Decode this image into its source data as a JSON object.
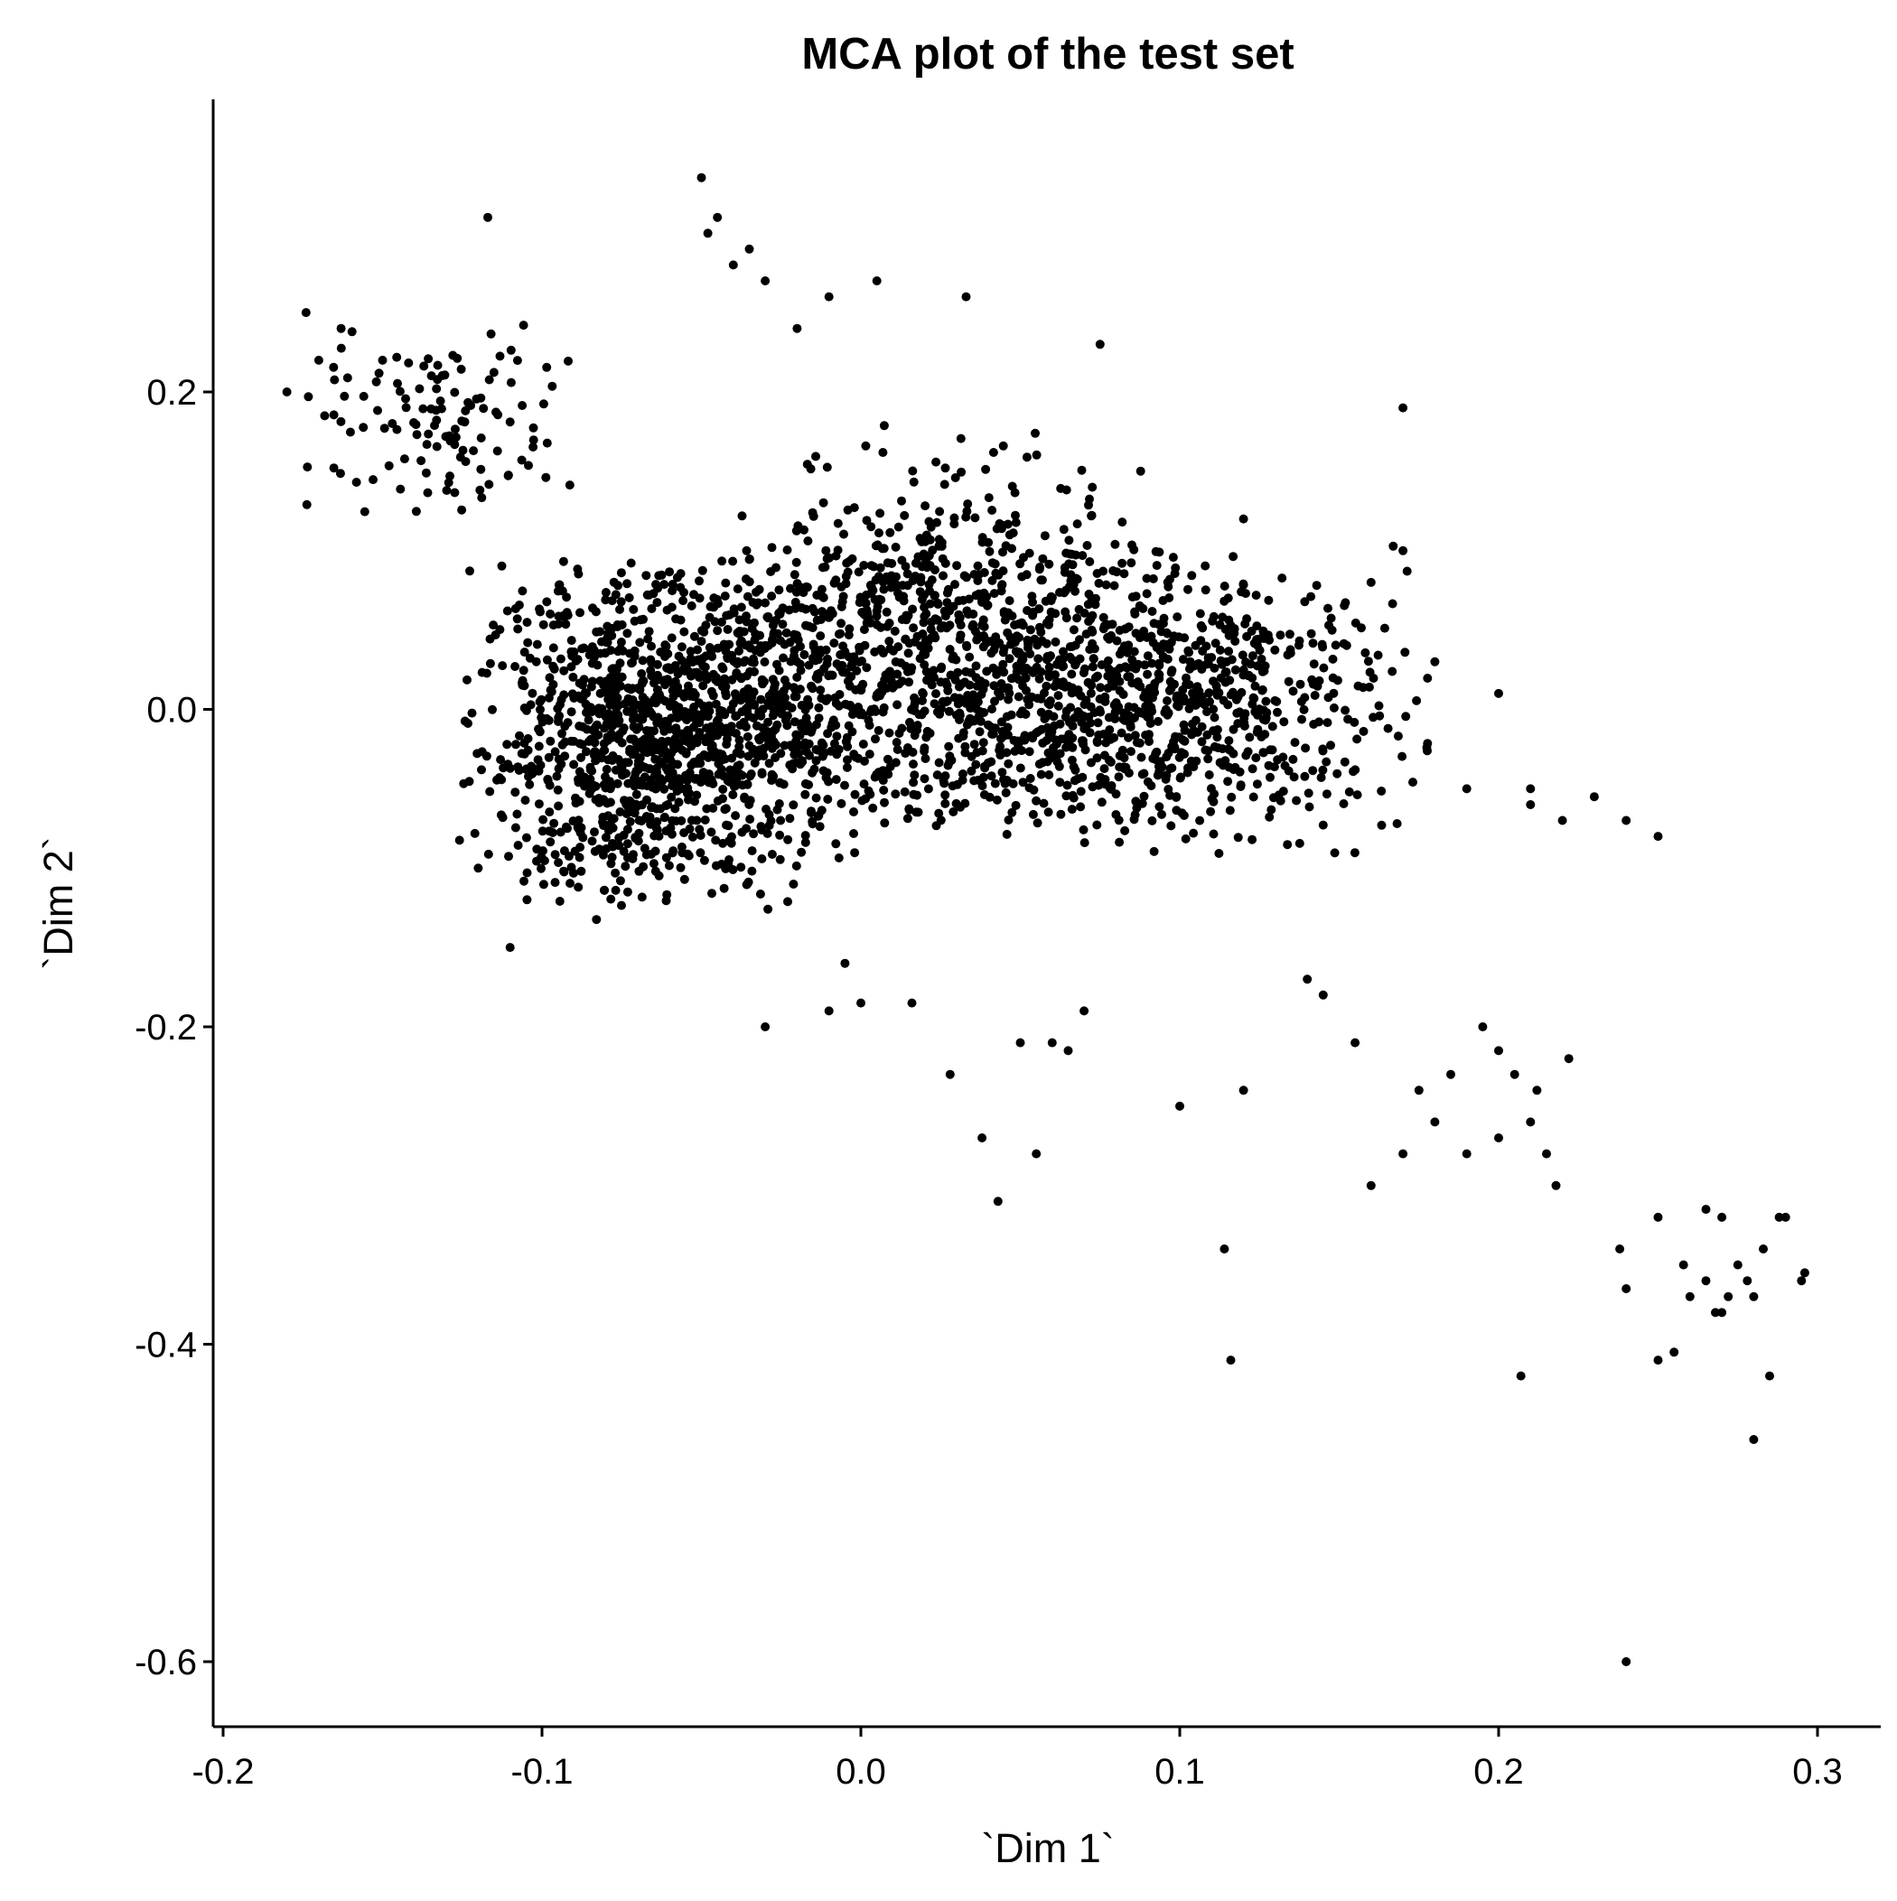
{
  "chart_data": {
    "type": "scatter",
    "title": "MCA plot of the test set",
    "xlabel": "`Dim 1`",
    "ylabel": "`Dim 2`",
    "xlim": [
      -0.2,
      0.32
    ],
    "ylim": [
      -0.64,
      0.38
    ],
    "x_ticks": [
      -0.2,
      -0.1,
      0.0,
      0.1,
      0.2,
      0.3
    ],
    "x_tick_labels": [
      "-0.2",
      "-0.1",
      "0.0",
      "0.1",
      "0.2",
      "0.3"
    ],
    "y_ticks": [
      0.2,
      0.0,
      -0.2,
      -0.4,
      -0.6
    ],
    "y_tick_labels": [
      "0.2",
      "0.0",
      "-0.2",
      "-0.4",
      "-0.6"
    ],
    "grid": false,
    "legend": "none",
    "point_color": "#000000",
    "clusters": [
      {
        "center": [
          -0.07,
          -0.02
        ],
        "spread": [
          0.025,
          0.05
        ],
        "n": 900
      },
      {
        "center": [
          -0.03,
          0.0
        ],
        "spread": [
          0.03,
          0.045
        ],
        "n": 500
      },
      {
        "center": [
          0.04,
          0.02
        ],
        "spread": [
          0.04,
          0.045
        ],
        "n": 800
      },
      {
        "center": [
          0.1,
          0.0
        ],
        "spread": [
          0.035,
          0.04
        ],
        "n": 600
      },
      {
        "center": [
          0.03,
          0.1
        ],
        "spread": [
          0.03,
          0.035
        ],
        "n": 200
      },
      {
        "center": [
          -0.13,
          0.18
        ],
        "spread": [
          0.02,
          0.03
        ],
        "n": 120
      }
    ],
    "x": [
      -0.05,
      -0.045,
      -0.048,
      -0.04,
      -0.035,
      -0.03,
      -0.02,
      -0.01,
      0.005,
      -0.117,
      -0.18,
      -0.174,
      -0.163,
      -0.17,
      -0.15,
      0.033,
      0.075,
      0.17,
      0.17,
      0.12,
      0.16,
      0.18,
      0.2,
      0.19,
      0.21,
      0.22,
      0.24,
      0.25,
      0.23,
      0.21,
      0.195,
      0.185,
      0.2,
      0.205,
      0.21,
      0.215,
      0.222,
      0.212,
      0.2,
      0.19,
      0.18,
      0.175,
      0.17,
      0.16,
      0.155,
      0.145,
      0.14,
      0.12,
      0.114,
      0.116,
      0.1,
      0.05,
      0.043,
      0.038,
      0.028,
      0.055,
      0.06,
      0.065,
      0.07,
      -0.03,
      -0.01,
      0.0,
      0.016,
      -0.005,
      -0.12,
      -0.11,
      0.24,
      0.25,
      0.255,
      0.26,
      0.265,
      0.27,
      0.275,
      0.28,
      0.285,
      0.29,
      0.295,
      0.283,
      0.28,
      0.27,
      0.268,
      0.25,
      0.258,
      0.24,
      0.207,
      0.218,
      0.238,
      0.265,
      0.272,
      0.278,
      0.288,
      0.296
    ],
    "y": [
      0.335,
      0.31,
      0.3,
      0.28,
      0.29,
      0.27,
      0.24,
      0.26,
      0.27,
      0.31,
      0.2,
      0.25,
      0.24,
      0.22,
      0.22,
      0.26,
      0.23,
      0.19,
      0.1,
      0.12,
      0.08,
      0.03,
      0.01,
      -0.05,
      -0.05,
      -0.07,
      -0.07,
      -0.08,
      -0.055,
      -0.06,
      -0.2,
      -0.23,
      -0.215,
      -0.23,
      -0.26,
      -0.28,
      -0.22,
      -0.24,
      -0.27,
      -0.28,
      -0.26,
      -0.24,
      -0.28,
      -0.3,
      -0.21,
      -0.18,
      -0.17,
      -0.24,
      -0.34,
      -0.41,
      -0.25,
      -0.21,
      -0.31,
      -0.27,
      -0.23,
      -0.28,
      -0.21,
      -0.215,
      -0.19,
      -0.2,
      -0.19,
      -0.185,
      -0.185,
      -0.16,
      -0.1,
      -0.15,
      -0.6,
      -0.41,
      -0.405,
      -0.37,
      -0.36,
      -0.38,
      -0.35,
      -0.46,
      -0.42,
      -0.32,
      -0.36,
      -0.34,
      -0.37,
      -0.32,
      -0.38,
      -0.32,
      -0.35,
      -0.365,
      -0.42,
      -0.3,
      -0.34,
      -0.315,
      -0.37,
      -0.36,
      -0.32,
      -0.355
    ]
  }
}
